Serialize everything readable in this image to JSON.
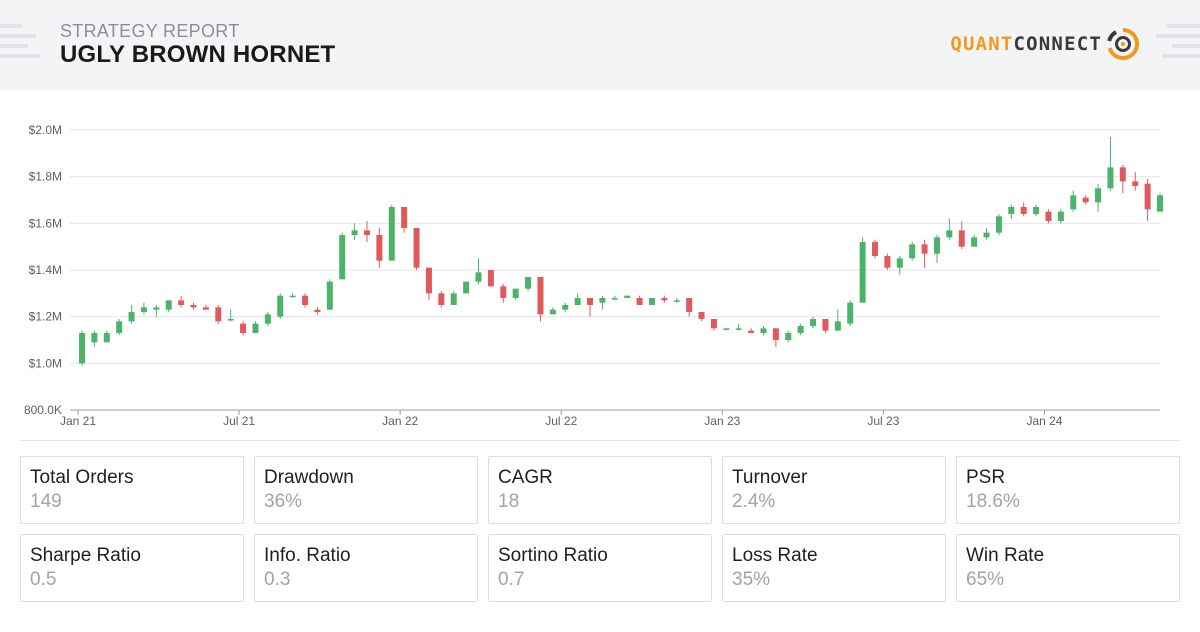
{
  "header": {
    "subtitle": "STRATEGY REPORT",
    "title": "UGLY BROWN HORNET",
    "logo_quant": "QUANT",
    "logo_connect": "CONNECT"
  },
  "colors": {
    "up": "#4bb36a",
    "down": "#e05a5c",
    "grid": "#e5e6e9",
    "axis_text": "#5b5f66",
    "accent": "#f29a1f"
  },
  "icons": {
    "logo": "quantconnect-target-icon",
    "deco": "striped-lines-decoration"
  },
  "chart_data": {
    "type": "candlestick",
    "y_ticks": [
      "$2.0M",
      "$1.8M",
      "$1.6M",
      "$1.4M",
      "$1.2M",
      "$1.0M",
      "800.0K"
    ],
    "y_tick_values": [
      2.0,
      1.8,
      1.6,
      1.4,
      1.2,
      1.0,
      0.8
    ],
    "ylim": [
      0.8,
      2.0
    ],
    "x_ticks": [
      "Jan 21",
      "Jul 21",
      "Jan 22",
      "Jul 22",
      "Jan 23",
      "Jul 23",
      "Jan 24"
    ],
    "x_tick_positions": [
      0,
      13,
      26,
      39,
      52,
      65,
      78
    ],
    "xlim": [
      0,
      87
    ],
    "grid": true,
    "candles": [
      [
        1.0,
        1.13,
        0.99,
        1.14
      ],
      [
        1.09,
        1.13,
        1.07,
        1.14
      ],
      [
        1.09,
        1.13,
        1.09,
        1.14
      ],
      [
        1.13,
        1.18,
        1.12,
        1.19
      ],
      [
        1.18,
        1.22,
        1.17,
        1.25
      ],
      [
        1.22,
        1.24,
        1.21,
        1.26
      ],
      [
        1.23,
        1.24,
        1.2,
        1.25
      ],
      [
        1.23,
        1.27,
        1.22,
        1.27
      ],
      [
        1.27,
        1.25,
        1.24,
        1.29
      ],
      [
        1.25,
        1.24,
        1.23,
        1.26
      ],
      [
        1.24,
        1.23,
        1.23,
        1.25
      ],
      [
        1.24,
        1.18,
        1.17,
        1.25
      ],
      [
        1.19,
        1.19,
        1.18,
        1.23
      ],
      [
        1.17,
        1.13,
        1.12,
        1.18
      ],
      [
        1.13,
        1.17,
        1.13,
        1.18
      ],
      [
        1.17,
        1.21,
        1.16,
        1.22
      ],
      [
        1.2,
        1.29,
        1.19,
        1.3
      ],
      [
        1.29,
        1.29,
        1.28,
        1.3
      ],
      [
        1.29,
        1.25,
        1.24,
        1.3
      ],
      [
        1.23,
        1.22,
        1.21,
        1.24
      ],
      [
        1.23,
        1.35,
        1.23,
        1.36
      ],
      [
        1.36,
        1.55,
        1.36,
        1.56
      ],
      [
        1.55,
        1.57,
        1.53,
        1.6
      ],
      [
        1.57,
        1.55,
        1.52,
        1.61
      ],
      [
        1.55,
        1.44,
        1.41,
        1.58
      ],
      [
        1.44,
        1.67,
        1.44,
        1.68
      ],
      [
        1.67,
        1.58,
        1.56,
        1.67
      ],
      [
        1.58,
        1.41,
        1.4,
        1.58
      ],
      [
        1.41,
        1.3,
        1.27,
        1.41
      ],
      [
        1.3,
        1.25,
        1.24,
        1.31
      ],
      [
        1.25,
        1.3,
        1.25,
        1.31
      ],
      [
        1.3,
        1.35,
        1.3,
        1.35
      ],
      [
        1.35,
        1.39,
        1.34,
        1.45
      ],
      [
        1.4,
        1.33,
        1.33,
        1.4
      ],
      [
        1.33,
        1.28,
        1.26,
        1.34
      ],
      [
        1.28,
        1.32,
        1.27,
        1.32
      ],
      [
        1.32,
        1.37,
        1.31,
        1.37
      ],
      [
        1.37,
        1.21,
        1.18,
        1.37
      ],
      [
        1.21,
        1.23,
        1.21,
        1.24
      ],
      [
        1.23,
        1.25,
        1.22,
        1.26
      ],
      [
        1.25,
        1.28,
        1.25,
        1.3
      ],
      [
        1.28,
        1.25,
        1.2,
        1.28
      ],
      [
        1.26,
        1.28,
        1.23,
        1.29
      ],
      [
        1.28,
        1.28,
        1.27,
        1.29
      ],
      [
        1.28,
        1.29,
        1.28,
        1.29
      ],
      [
        1.28,
        1.25,
        1.25,
        1.29
      ],
      [
        1.25,
        1.28,
        1.25,
        1.28
      ],
      [
        1.28,
        1.27,
        1.26,
        1.29
      ],
      [
        1.27,
        1.27,
        1.26,
        1.28
      ],
      [
        1.28,
        1.22,
        1.2,
        1.28
      ],
      [
        1.22,
        1.19,
        1.18,
        1.22
      ],
      [
        1.19,
        1.15,
        1.14,
        1.19
      ],
      [
        1.15,
        1.15,
        1.14,
        1.15
      ],
      [
        1.15,
        1.15,
        1.14,
        1.17
      ],
      [
        1.14,
        1.13,
        1.13,
        1.15
      ],
      [
        1.13,
        1.15,
        1.12,
        1.16
      ],
      [
        1.15,
        1.1,
        1.07,
        1.15
      ],
      [
        1.1,
        1.13,
        1.09,
        1.14
      ],
      [
        1.13,
        1.16,
        1.12,
        1.17
      ],
      [
        1.16,
        1.19,
        1.15,
        1.2
      ],
      [
        1.19,
        1.14,
        1.13,
        1.19
      ],
      [
        1.14,
        1.18,
        1.14,
        1.23
      ],
      [
        1.17,
        1.26,
        1.16,
        1.27
      ],
      [
        1.26,
        1.52,
        1.26,
        1.54
      ],
      [
        1.52,
        1.46,
        1.45,
        1.53
      ],
      [
        1.46,
        1.41,
        1.4,
        1.47
      ],
      [
        1.41,
        1.45,
        1.38,
        1.46
      ],
      [
        1.45,
        1.51,
        1.44,
        1.52
      ],
      [
        1.51,
        1.47,
        1.41,
        1.53
      ],
      [
        1.47,
        1.54,
        1.43,
        1.55
      ],
      [
        1.54,
        1.57,
        1.53,
        1.62
      ],
      [
        1.57,
        1.5,
        1.49,
        1.61
      ],
      [
        1.5,
        1.54,
        1.5,
        1.55
      ],
      [
        1.54,
        1.56,
        1.53,
        1.58
      ],
      [
        1.56,
        1.63,
        1.55,
        1.64
      ],
      [
        1.64,
        1.67,
        1.62,
        1.68
      ],
      [
        1.67,
        1.64,
        1.63,
        1.69
      ],
      [
        1.64,
        1.67,
        1.63,
        1.68
      ],
      [
        1.65,
        1.61,
        1.6,
        1.66
      ],
      [
        1.61,
        1.65,
        1.6,
        1.66
      ],
      [
        1.66,
        1.72,
        1.65,
        1.74
      ],
      [
        1.71,
        1.69,
        1.68,
        1.72
      ],
      [
        1.69,
        1.75,
        1.65,
        1.77
      ],
      [
        1.75,
        1.84,
        1.74,
        1.97
      ],
      [
        1.84,
        1.78,
        1.73,
        1.85
      ],
      [
        1.78,
        1.76,
        1.74,
        1.82
      ],
      [
        1.77,
        1.66,
        1.61,
        1.79
      ],
      [
        1.65,
        1.72,
        1.65,
        1.73
      ]
    ]
  },
  "stats": [
    {
      "label": "Total Orders",
      "value": "149"
    },
    {
      "label": "Drawdown",
      "value": "36%"
    },
    {
      "label": "CAGR",
      "value": "18"
    },
    {
      "label": "Turnover",
      "value": "2.4%"
    },
    {
      "label": "PSR",
      "value": "18.6%"
    },
    {
      "label": "Sharpe Ratio",
      "value": "0.5"
    },
    {
      "label": "Info. Ratio",
      "value": "0.3"
    },
    {
      "label": "Sortino Ratio",
      "value": "0.7"
    },
    {
      "label": "Loss Rate",
      "value": "35%"
    },
    {
      "label": "Win Rate",
      "value": "65%"
    }
  ]
}
